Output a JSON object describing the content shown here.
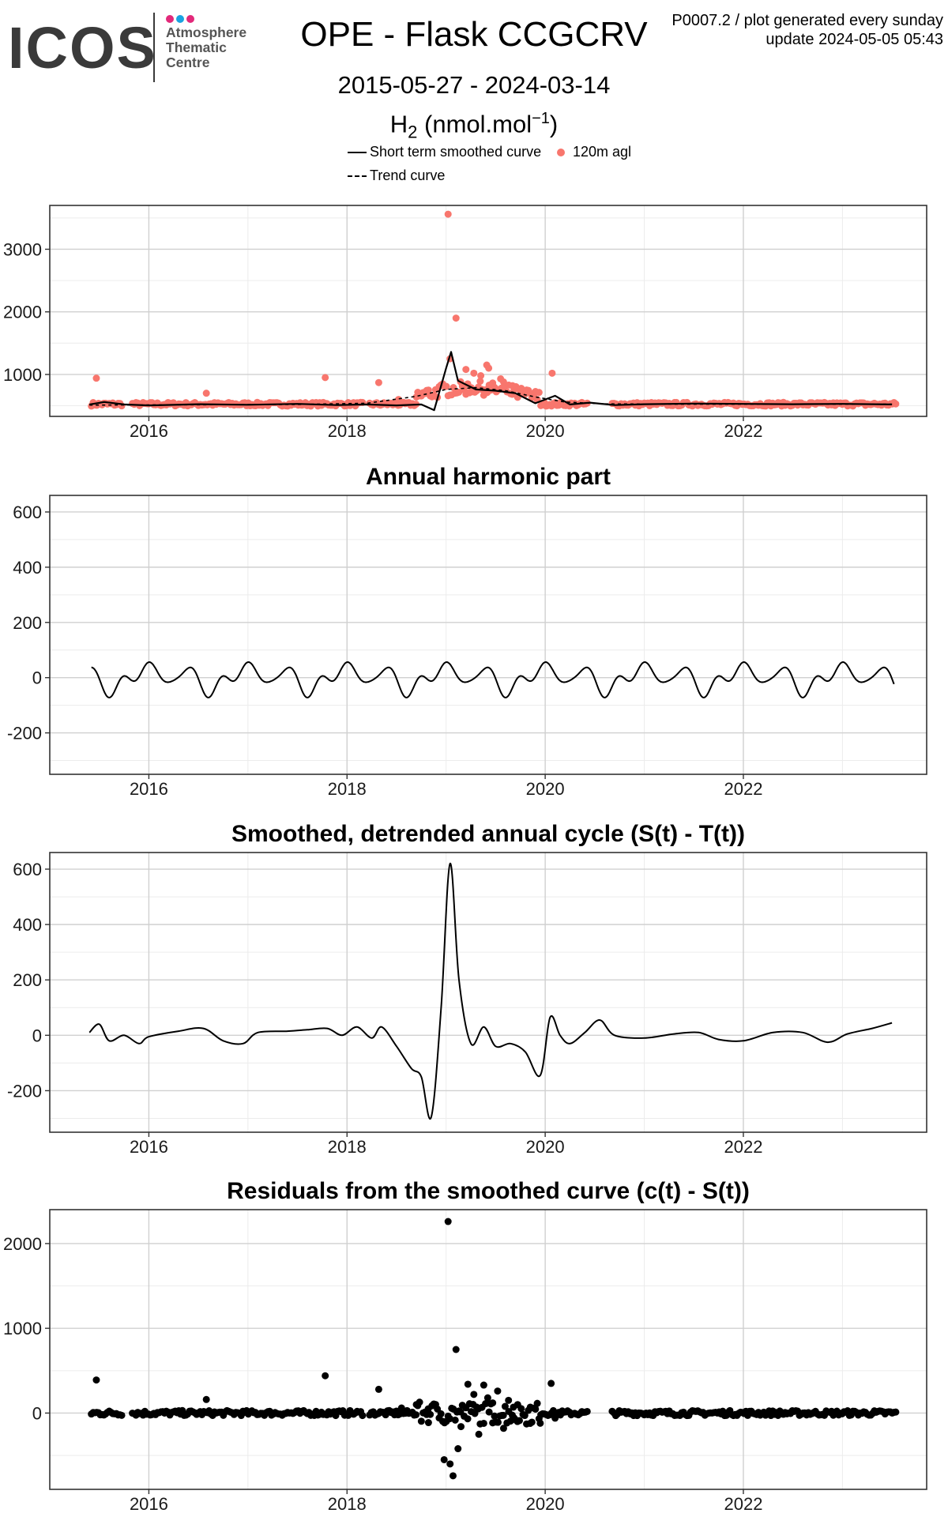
{
  "header": {
    "logo_text": "ICOS",
    "logo_subtitle": [
      "Atmosphere",
      "Thematic",
      "Centre"
    ],
    "logo_colors": [
      "#E2297A",
      "#1AA3E1",
      "#E2297A"
    ],
    "title": "OPE - Flask CCGCRV",
    "date_range": "2015-05-27 - 2024-03-14",
    "species_base": "H",
    "species_sub": "2",
    "unit_text": "(nmol.mol",
    "unit_sup": "−1",
    "unit_close": ")",
    "meta_line1": "P0007.2 / plot generated every sunday",
    "meta_line2": "update  2024-05-05 05:43"
  },
  "legend": {
    "smoothed": "Short term smoothed curve",
    "trend": "Trend curve",
    "points": "120m agl",
    "point_color": "#F8766D"
  },
  "chart_data": [
    {
      "id": "main",
      "type": "scatter",
      "title": "",
      "xlim": [
        2015.0,
        2023.85
      ],
      "ylim": [
        330,
        3700
      ],
      "xticks": [
        2016,
        2018,
        2020,
        2022
      ],
      "yticks": [
        1000,
        2000,
        3000
      ],
      "grid": true,
      "point_color": "#F8766D",
      "outliers": [
        [
          2015.47,
          940
        ],
        [
          2016.58,
          700
        ],
        [
          2017.78,
          950
        ],
        [
          2018.32,
          870
        ],
        [
          2018.52,
          600
        ],
        [
          2018.7,
          640
        ],
        [
          2019.02,
          3560
        ],
        [
          2019.04,
          1250
        ],
        [
          2019.1,
          1900
        ],
        [
          2019.2,
          1080
        ],
        [
          2019.28,
          1020
        ],
        [
          2019.35,
          980
        ],
        [
          2019.41,
          1150
        ],
        [
          2019.43,
          1100
        ],
        [
          2019.55,
          930
        ],
        [
          2019.58,
          880
        ],
        [
          2019.67,
          820
        ],
        [
          2019.75,
          760
        ],
        [
          2019.85,
          700
        ],
        [
          2020.07,
          1020
        ]
      ],
      "smoothed_curve": [
        [
          2015.4,
          520
        ],
        [
          2015.55,
          560
        ],
        [
          2015.75,
          520
        ],
        [
          2016.0,
          505
        ],
        [
          2016.5,
          525
        ],
        [
          2017.0,
          515
        ],
        [
          2017.5,
          530
        ],
        [
          2017.9,
          510
        ],
        [
          2018.2,
          520
        ],
        [
          2018.5,
          505
        ],
        [
          2018.75,
          520
        ],
        [
          2018.88,
          430
        ],
        [
          2019.0,
          1100
        ],
        [
          2019.05,
          1360
        ],
        [
          2019.12,
          900
        ],
        [
          2019.3,
          760
        ],
        [
          2019.5,
          740
        ],
        [
          2019.7,
          700
        ],
        [
          2019.9,
          540
        ],
        [
          2020.0,
          600
        ],
        [
          2020.1,
          660
        ],
        [
          2020.25,
          520
        ],
        [
          2020.45,
          550
        ],
        [
          2020.7,
          510
        ],
        [
          2021.0,
          525
        ],
        [
          2021.5,
          535
        ],
        [
          2022.0,
          530
        ],
        [
          2022.5,
          525
        ],
        [
          2023.0,
          530
        ],
        [
          2023.5,
          520
        ]
      ],
      "trend_curve": [
        [
          2015.4,
          510
        ],
        [
          2016.5,
          515
        ],
        [
          2017.5,
          520
        ],
        [
          2018.2,
          540
        ],
        [
          2018.7,
          650
        ],
        [
          2019.0,
          760
        ],
        [
          2019.3,
          790
        ],
        [
          2019.6,
          740
        ],
        [
          2019.9,
          640
        ],
        [
          2020.2,
          560
        ],
        [
          2020.6,
          530
        ],
        [
          2021.5,
          525
        ],
        [
          2022.5,
          525
        ],
        [
          2023.5,
          525
        ]
      ]
    },
    {
      "id": "harmonic",
      "type": "line",
      "title": "Annual harmonic part",
      "xlim": [
        2015.0,
        2023.85
      ],
      "ylim": [
        -350,
        660
      ],
      "xticks": [
        2016,
        2018,
        2020,
        2022
      ],
      "yticks": [
        -200,
        0,
        200,
        400,
        600
      ],
      "grid": true
    },
    {
      "id": "detrended",
      "type": "line",
      "title": "Smoothed, detrended annual cycle (S(t) - T(t))",
      "xlim": [
        2015.0,
        2023.85
      ],
      "ylim": [
        -350,
        660
      ],
      "xticks": [
        2016,
        2018,
        2020,
        2022
      ],
      "yticks": [
        -200,
        0,
        200,
        400,
        600
      ],
      "grid": true,
      "values": [
        [
          2015.4,
          10
        ],
        [
          2015.5,
          40
        ],
        [
          2015.6,
          -20
        ],
        [
          2015.75,
          0
        ],
        [
          2015.9,
          -30
        ],
        [
          2016.0,
          -5
        ],
        [
          2016.3,
          15
        ],
        [
          2016.55,
          25
        ],
        [
          2016.75,
          -20
        ],
        [
          2016.95,
          -30
        ],
        [
          2017.1,
          10
        ],
        [
          2017.4,
          15
        ],
        [
          2017.6,
          20
        ],
        [
          2017.8,
          25
        ],
        [
          2017.95,
          0
        ],
        [
          2018.1,
          30
        ],
        [
          2018.25,
          -10
        ],
        [
          2018.35,
          30
        ],
        [
          2018.5,
          -40
        ],
        [
          2018.65,
          -120
        ],
        [
          2018.75,
          -150
        ],
        [
          2018.85,
          -295
        ],
        [
          2018.95,
          100
        ],
        [
          2019.04,
          620
        ],
        [
          2019.13,
          200
        ],
        [
          2019.25,
          -30
        ],
        [
          2019.38,
          30
        ],
        [
          2019.5,
          -40
        ],
        [
          2019.65,
          -30
        ],
        [
          2019.8,
          -60
        ],
        [
          2019.95,
          -145
        ],
        [
          2020.05,
          65
        ],
        [
          2020.15,
          0
        ],
        [
          2020.25,
          -30
        ],
        [
          2020.4,
          10
        ],
        [
          2020.55,
          55
        ],
        [
          2020.7,
          0
        ],
        [
          2021.0,
          -10
        ],
        [
          2021.3,
          5
        ],
        [
          2021.55,
          10
        ],
        [
          2021.75,
          -15
        ],
        [
          2022.0,
          -20
        ],
        [
          2022.3,
          10
        ],
        [
          2022.6,
          10
        ],
        [
          2022.85,
          -25
        ],
        [
          2023.05,
          5
        ],
        [
          2023.3,
          25
        ],
        [
          2023.5,
          45
        ]
      ]
    },
    {
      "id": "residuals",
      "type": "scatter",
      "title": "Residuals from the smoothed curve (c(t) - S(t))",
      "xlim": [
        2015.0,
        2023.85
      ],
      "ylim": [
        -900,
        2400
      ],
      "xticks": [
        2016,
        2018,
        2020,
        2022
      ],
      "yticks": [
        0,
        1000,
        2000
      ],
      "grid": true,
      "point_color": "#000000",
      "outliers": [
        [
          2015.47,
          390
        ],
        [
          2016.58,
          160
        ],
        [
          2017.78,
          440
        ],
        [
          2018.32,
          280
        ],
        [
          2018.55,
          60
        ],
        [
          2018.7,
          100
        ],
        [
          2018.82,
          50
        ],
        [
          2018.98,
          -550
        ],
        [
          2019.02,
          2260
        ],
        [
          2019.04,
          -600
        ],
        [
          2019.07,
          -740
        ],
        [
          2019.1,
          750
        ],
        [
          2019.12,
          -420
        ],
        [
          2019.15,
          -160
        ],
        [
          2019.22,
          340
        ],
        [
          2019.28,
          220
        ],
        [
          2019.33,
          -250
        ],
        [
          2019.38,
          330
        ],
        [
          2019.42,
          180
        ],
        [
          2019.47,
          120
        ],
        [
          2019.52,
          260
        ],
        [
          2019.58,
          -180
        ],
        [
          2019.63,
          150
        ],
        [
          2019.68,
          70
        ],
        [
          2019.72,
          -100
        ],
        [
          2019.85,
          70
        ],
        [
          2019.95,
          -120
        ],
        [
          2020.06,
          350
        ],
        [
          2020.1,
          -60
        ]
      ]
    }
  ]
}
